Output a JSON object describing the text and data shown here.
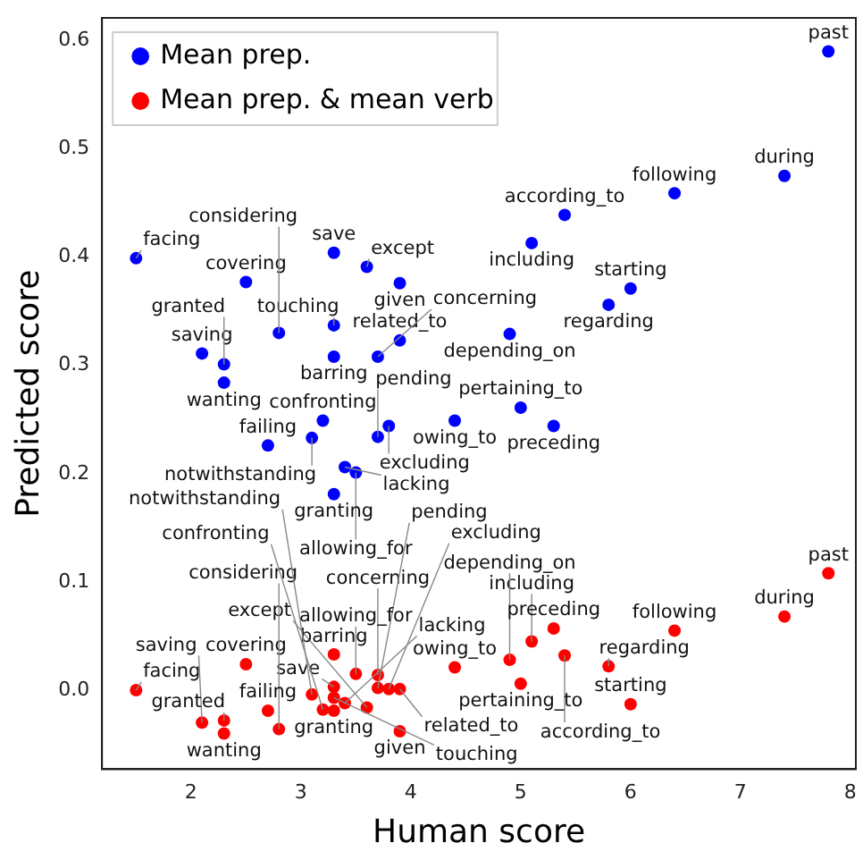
{
  "chart_data": {
    "type": "scatter",
    "xlabel": "Human score",
    "ylabel": "Predicted score",
    "xlim": [
      1.19,
      8.05
    ],
    "xticks": [
      2,
      3,
      4,
      5,
      6,
      7,
      8
    ],
    "ylim": [
      -0.073,
      0.621
    ],
    "yticks": [
      {
        "value": 0,
        "label": "0.0"
      },
      0.1,
      0.2,
      0.3,
      0.4,
      0.5,
      0.6
    ],
    "legend": "top left",
    "marker": "circle",
    "grid": false,
    "series": [
      {
        "name": "Mean prep.",
        "color": "#0000ff",
        "x": [
          7.8,
          7.4,
          6.4,
          5.4,
          5.1,
          1.5,
          2.5,
          3.3,
          3.6,
          3.9,
          6.0,
          5.8,
          3.3,
          2.8,
          3.9,
          4.9,
          2.1,
          2.3,
          3.3,
          3.7,
          2.3,
          5.0,
          4.4,
          5.3,
          3.2,
          3.8,
          3.7,
          3.1,
          2.7,
          3.4,
          3.5,
          3.3
        ],
        "values": [
          0.59,
          0.475,
          0.459,
          0.439,
          0.413,
          0.399,
          0.377,
          0.404,
          0.391,
          0.376,
          0.371,
          0.356,
          0.337,
          0.33,
          0.323,
          0.329,
          0.311,
          0.301,
          0.308,
          0.308,
          0.284,
          0.261,
          0.249,
          0.244,
          0.249,
          0.244,
          0.234,
          0.233,
          0.226,
          0.206,
          0.201,
          0.181
        ]
      },
      {
        "name": "Mean prep. & mean verb",
        "color": "#ff0000",
        "x": [
          7.8,
          7.4,
          6.4,
          5.4,
          5.1,
          1.5,
          2.5,
          3.3,
          3.6,
          3.9,
          6.0,
          5.8,
          3.3,
          2.8,
          3.9,
          4.9,
          2.1,
          2.3,
          3.3,
          3.7,
          2.3,
          5.0,
          4.4,
          5.3,
          3.2,
          3.8,
          3.7,
          3.1,
          2.7,
          3.4,
          3.5,
          3.3
        ],
        "values": [
          0.108,
          0.068,
          0.055,
          0.032,
          0.045,
          0.0,
          0.024,
          0.003,
          -0.016,
          -0.038,
          -0.013,
          0.022,
          -0.007,
          -0.036,
          0.001,
          0.028,
          -0.03,
          -0.028,
          0.033,
          0.014,
          -0.04,
          0.006,
          0.021,
          0.057,
          -0.018,
          0.001,
          0.002,
          -0.004,
          -0.019,
          -0.012,
          0.015,
          -0.019
        ]
      }
    ],
    "annotations": [
      {
        "text": "past",
        "x": 7.8,
        "y": 0.59
      },
      {
        "text": "during",
        "x": 7.4,
        "y": 0.475
      },
      {
        "text": "following",
        "x": 6.4,
        "y": 0.459
      },
      {
        "text": "according_to",
        "x": 5.4,
        "y": 0.439
      },
      {
        "text": "including",
        "x": 5.1,
        "y": 0.413
      },
      {
        "text": "facing",
        "x": 1.5,
        "y": 0.399
      },
      {
        "text": "covering",
        "x": 2.5,
        "y": 0.377
      },
      {
        "text": "save",
        "x": 3.3,
        "y": 0.404
      },
      {
        "text": "except",
        "x": 3.6,
        "y": 0.391
      },
      {
        "text": "given",
        "x": 3.9,
        "y": 0.376
      },
      {
        "text": "starting",
        "x": 6.0,
        "y": 0.371
      },
      {
        "text": "regarding",
        "x": 5.8,
        "y": 0.356
      },
      {
        "text": "touching",
        "x": 3.3,
        "y": 0.337
      },
      {
        "text": "considering",
        "x": 2.8,
        "y": 0.33
      },
      {
        "text": "related_to",
        "x": 3.9,
        "y": 0.323
      },
      {
        "text": "depending_on",
        "x": 4.9,
        "y": 0.329
      },
      {
        "text": "saving",
        "x": 2.1,
        "y": 0.311
      },
      {
        "text": "granted",
        "x": 2.3,
        "y": 0.301
      },
      {
        "text": "barring",
        "x": 3.3,
        "y": 0.308
      },
      {
        "text": "concerning",
        "x": 3.7,
        "y": 0.308
      },
      {
        "text": "wanting",
        "x": 2.3,
        "y": 0.284
      },
      {
        "text": "pertaining_to",
        "x": 5.0,
        "y": 0.261
      },
      {
        "text": "owing_to",
        "x": 4.4,
        "y": 0.249
      },
      {
        "text": "preceding",
        "x": 5.3,
        "y": 0.244
      },
      {
        "text": "confronting",
        "x": 3.2,
        "y": 0.249
      },
      {
        "text": "excluding",
        "x": 3.8,
        "y": 0.244
      },
      {
        "text": "pending",
        "x": 3.7,
        "y": 0.234
      },
      {
        "text": "notwithstanding",
        "x": 3.1,
        "y": 0.233
      },
      {
        "text": "failing",
        "x": 2.7,
        "y": 0.226
      },
      {
        "text": "lacking",
        "x": 3.4,
        "y": 0.206
      },
      {
        "text": "allowing_for",
        "x": 3.5,
        "y": 0.201
      },
      {
        "text": "granting",
        "x": 3.3,
        "y": 0.181
      },
      {
        "text": "past",
        "x": 7.8,
        "y": 0.108
      },
      {
        "text": "during",
        "x": 7.4,
        "y": 0.068
      },
      {
        "text": "following",
        "x": 6.4,
        "y": 0.055
      },
      {
        "text": "according_to",
        "x": 5.4,
        "y": 0.032
      },
      {
        "text": "including",
        "x": 5.1,
        "y": 0.045
      },
      {
        "text": "facing",
        "x": 1.5,
        "y": 0.0
      },
      {
        "text": "covering",
        "x": 2.5,
        "y": 0.024
      },
      {
        "text": "save",
        "x": 3.3,
        "y": 0.003
      },
      {
        "text": "except",
        "x": 3.6,
        "y": -0.016
      },
      {
        "text": "given",
        "x": 3.9,
        "y": -0.038
      },
      {
        "text": "starting",
        "x": 6.0,
        "y": -0.013
      },
      {
        "text": "regarding",
        "x": 5.8,
        "y": 0.022
      },
      {
        "text": "touching",
        "x": 3.3,
        "y": -0.007
      },
      {
        "text": "considering",
        "x": 2.8,
        "y": -0.036
      },
      {
        "text": "related_to",
        "x": 3.9,
        "y": 0.001
      },
      {
        "text": "depending_on",
        "x": 4.9,
        "y": 0.028
      },
      {
        "text": "saving",
        "x": 2.1,
        "y": -0.03
      },
      {
        "text": "granted",
        "x": 2.3,
        "y": -0.028
      },
      {
        "text": "barring",
        "x": 3.3,
        "y": 0.033
      },
      {
        "text": "concerning",
        "x": 3.7,
        "y": 0.014
      },
      {
        "text": "wanting",
        "x": 2.3,
        "y": -0.04
      },
      {
        "text": "pertaining_to",
        "x": 5.0,
        "y": 0.006
      },
      {
        "text": "owing_to",
        "x": 4.4,
        "y": 0.021
      },
      {
        "text": "preceding",
        "x": 5.3,
        "y": 0.057
      },
      {
        "text": "confronting",
        "x": 3.2,
        "y": -0.018
      },
      {
        "text": "excluding",
        "x": 3.8,
        "y": 0.001
      },
      {
        "text": "pending",
        "x": 3.7,
        "y": 0.002
      },
      {
        "text": "notwithstanding",
        "x": 3.1,
        "y": -0.004
      },
      {
        "text": "failing",
        "x": 2.7,
        "y": -0.019
      },
      {
        "text": "lacking",
        "x": 3.4,
        "y": -0.012
      },
      {
        "text": "allowing_for",
        "x": 3.5,
        "y": 0.015
      },
      {
        "text": "granting",
        "x": 3.3,
        "y": -0.019
      }
    ]
  }
}
